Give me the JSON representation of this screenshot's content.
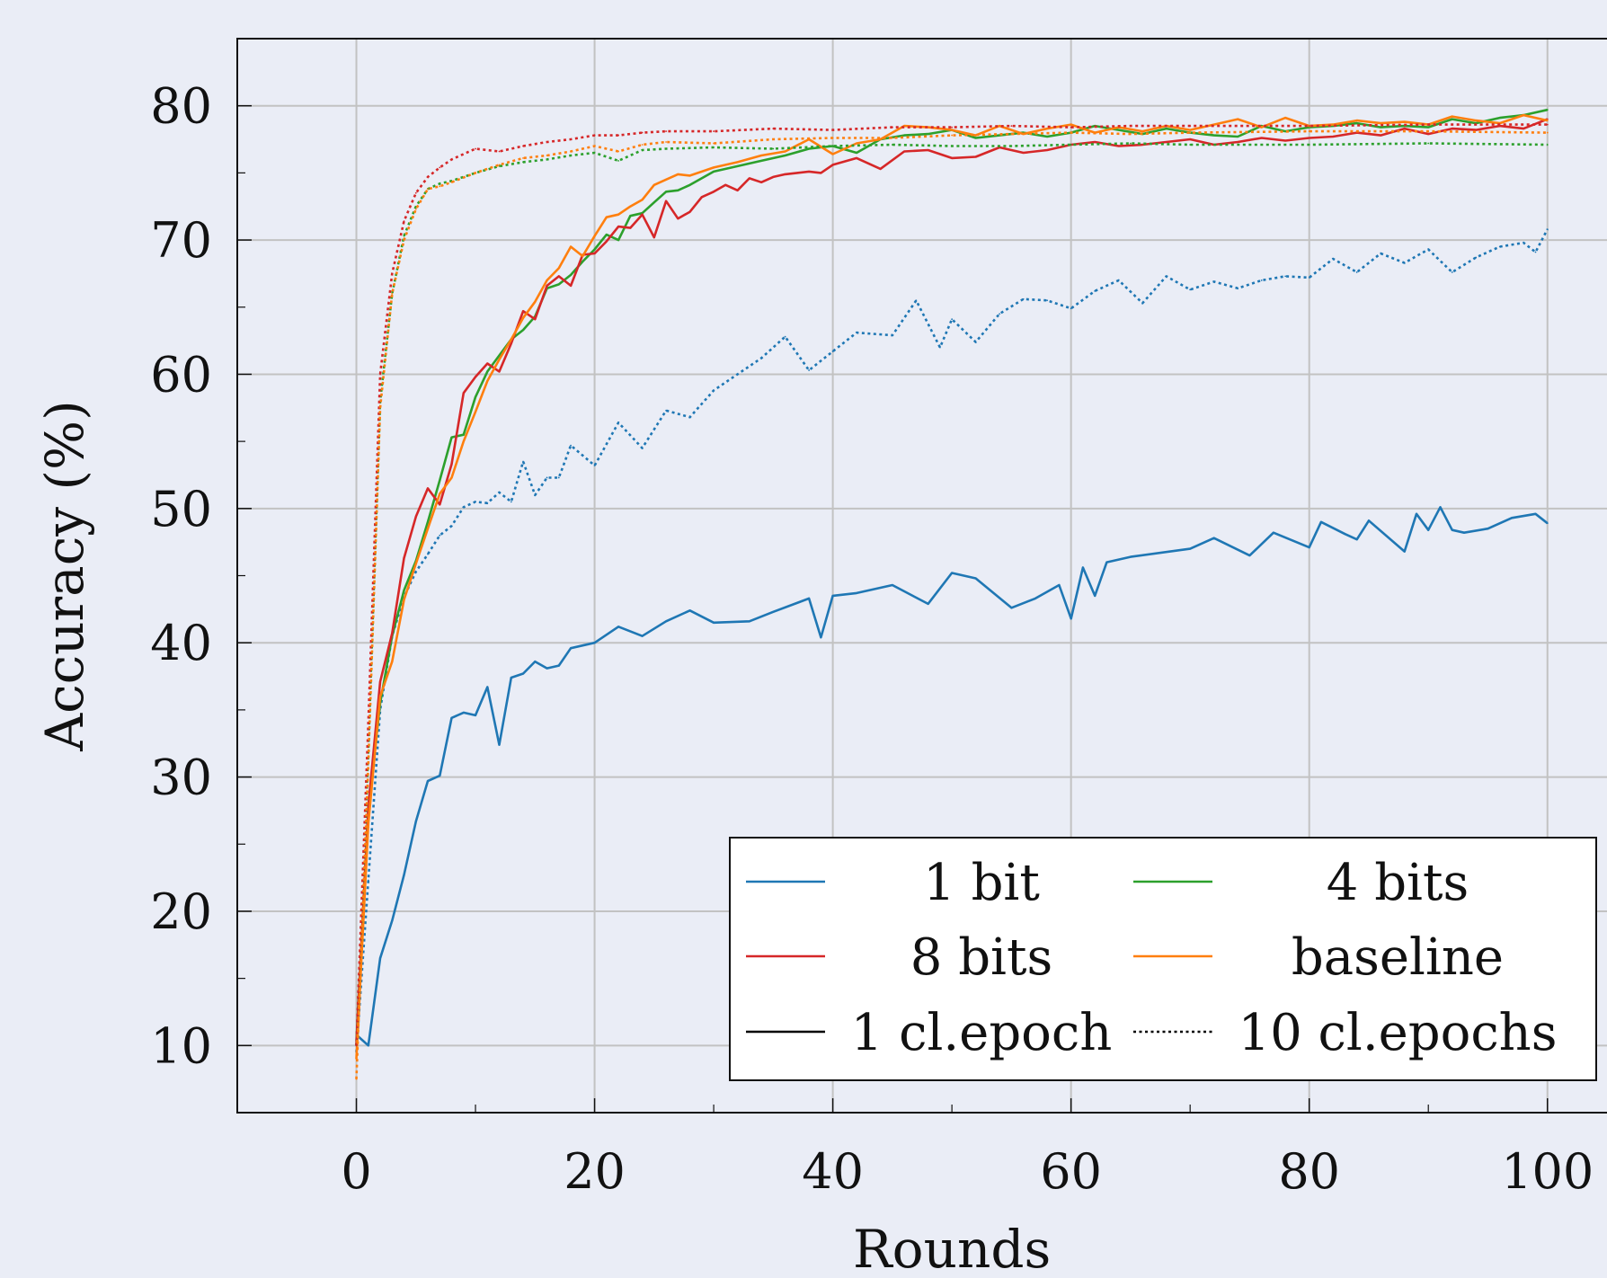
{
  "chart_data": {
    "type": "line",
    "xlabel": "Rounds",
    "ylabel": "Accuracy (%)",
    "xlim": [
      -10,
      105
    ],
    "ylim": [
      5,
      85
    ],
    "x_ticks": [
      0,
      20,
      40,
      60,
      80,
      100
    ],
    "y_ticks": [
      10,
      20,
      30,
      40,
      50,
      60,
      70,
      80
    ],
    "x_tick_labels": [
      "0",
      "20",
      "40",
      "60",
      "80",
      "100"
    ],
    "y_tick_labels": [
      "10",
      "20",
      "30",
      "40",
      "50",
      "60",
      "70",
      "80"
    ],
    "grid": true,
    "legend_position": "bottom-right",
    "legend": {
      "ncol": 2,
      "entries": [
        {
          "label": "1 bit",
          "color": "#1f77b4",
          "style": "solid"
        },
        {
          "label": "4 bits",
          "color": "#2ca02c",
          "style": "solid"
        },
        {
          "label": "8 bits",
          "color": "#d62728",
          "style": "solid"
        },
        {
          "label": "baseline",
          "color": "#ff7f0e",
          "style": "solid"
        },
        {
          "label": "1 cl.epoch",
          "color": "#000000",
          "style": "solid"
        },
        {
          "label": "10 cl.epochs",
          "color": "#000000",
          "style": "dotted"
        }
      ]
    },
    "series": [
      {
        "quant": "1 bit",
        "epochs": "1 cl.epoch",
        "color": "#1f77b4",
        "style": "solid",
        "x": [
          0,
          1,
          2,
          3,
          4,
          5,
          6,
          7,
          8,
          9,
          10,
          11,
          12,
          13,
          14,
          15,
          16,
          17,
          18,
          20,
          22,
          24,
          26,
          28,
          30,
          33,
          35,
          38,
          39,
          40,
          42,
          45,
          48,
          50,
          52,
          55,
          57,
          59,
          60,
          61,
          62,
          63,
          65,
          70,
          72,
          75,
          77,
          80,
          81,
          83,
          84,
          85,
          88,
          89,
          90,
          91,
          92,
          93,
          95,
          97,
          99,
          100
        ],
        "y": [
          10.8,
          10.0,
          16.5,
          19.3,
          22.7,
          26.7,
          29.7,
          30.1,
          34.4,
          34.8,
          34.6,
          36.7,
          32.4,
          37.4,
          37.7,
          38.6,
          38.1,
          38.3,
          39.6,
          40.0,
          41.2,
          40.5,
          41.6,
          42.4,
          41.5,
          41.6,
          42.3,
          43.3,
          40.4,
          43.5,
          43.7,
          44.3,
          42.9,
          45.2,
          44.8,
          42.6,
          43.3,
          44.3,
          41.8,
          45.6,
          43.5,
          46.0,
          46.4,
          47.0,
          47.8,
          46.5,
          48.2,
          47.1,
          49.0,
          48.1,
          47.7,
          49.1,
          46.8,
          49.6,
          48.4,
          50.1,
          48.4,
          48.2,
          48.5,
          49.3,
          49.6,
          48.9
        ]
      },
      {
        "quant": "1 bit",
        "epochs": "10 cl.epochs",
        "color": "#1f77b4",
        "style": "dotted",
        "x": [
          0,
          1,
          2,
          3,
          4,
          5,
          6,
          7,
          8,
          9,
          10,
          11,
          12,
          13,
          14,
          15,
          16,
          17,
          18,
          20,
          22,
          24,
          26,
          28,
          30,
          32,
          34,
          36,
          38,
          40,
          42,
          45,
          47,
          49,
          50,
          52,
          54,
          56,
          58,
          60,
          62,
          64,
          66,
          68,
          70,
          72,
          74,
          76,
          78,
          80,
          82,
          84,
          86,
          88,
          90,
          92,
          94,
          96,
          98,
          99,
          100
        ],
        "y": [
          9.5,
          22.3,
          35.0,
          40.5,
          43.4,
          45.3,
          46.6,
          48.0,
          48.7,
          50.1,
          50.5,
          50.4,
          51.2,
          50.5,
          53.5,
          51.0,
          52.3,
          52.3,
          54.7,
          53.2,
          56.4,
          54.5,
          57.3,
          56.8,
          58.8,
          60.0,
          61.2,
          62.8,
          60.3,
          61.7,
          63.1,
          62.9,
          65.5,
          62.0,
          64.1,
          62.4,
          64.5,
          65.6,
          65.5,
          64.9,
          66.2,
          67.0,
          65.3,
          67.3,
          66.3,
          66.9,
          66.4,
          67.0,
          67.3,
          67.2,
          68.6,
          67.6,
          69.0,
          68.3,
          69.3,
          67.6,
          68.7,
          69.5,
          69.8,
          69.1,
          70.8
        ]
      },
      {
        "quant": "4 bits",
        "epochs": "1 cl.epoch",
        "color": "#2ca02c",
        "style": "solid",
        "x": [
          0,
          1,
          2,
          3,
          4,
          5,
          6,
          7,
          8,
          9,
          10,
          11,
          12,
          13,
          14,
          15,
          16,
          17,
          18,
          19,
          20,
          21,
          22,
          23,
          24,
          25,
          26,
          27,
          28,
          30,
          32,
          34,
          36,
          38,
          40,
          42,
          44,
          46,
          48,
          50,
          52,
          54,
          56,
          58,
          60,
          62,
          64,
          66,
          68,
          70,
          72,
          74,
          76,
          78,
          80,
          82,
          84,
          86,
          88,
          90,
          92,
          94,
          96,
          98,
          100
        ],
        "y": [
          10.3,
          27.5,
          35.5,
          40.5,
          43.9,
          46.1,
          49.0,
          52.1,
          55.3,
          55.5,
          58.3,
          60.2,
          61.4,
          62.6,
          63.3,
          64.3,
          66.4,
          66.7,
          67.4,
          68.4,
          69.3,
          70.4,
          70.0,
          71.8,
          72.0,
          72.8,
          73.6,
          73.7,
          74.1,
          75.1,
          75.5,
          75.9,
          76.3,
          76.8,
          77.0,
          76.5,
          77.5,
          77.8,
          77.9,
          78.2,
          77.6,
          77.8,
          78.0,
          77.7,
          78.0,
          78.5,
          78.2,
          77.9,
          78.3,
          78.0,
          77.8,
          77.7,
          78.5,
          78.1,
          78.4,
          78.5,
          78.7,
          78.4,
          78.5,
          78.4,
          79.0,
          78.7,
          79.1,
          79.3,
          79.7
        ]
      },
      {
        "quant": "8 bits",
        "epochs": "1 cl.epoch",
        "color": "#d62728",
        "style": "solid",
        "x": [
          0,
          1,
          2,
          3,
          4,
          5,
          6,
          7,
          8,
          9,
          10,
          11,
          12,
          13,
          14,
          15,
          16,
          17,
          18,
          19,
          20,
          21,
          22,
          23,
          24,
          25,
          26,
          27,
          28,
          29,
          30,
          31,
          32,
          33,
          34,
          35,
          36,
          37,
          38,
          39,
          40,
          42,
          44,
          46,
          48,
          50,
          52,
          54,
          56,
          58,
          60,
          62,
          64,
          66,
          68,
          70,
          72,
          74,
          76,
          78,
          80,
          82,
          84,
          86,
          88,
          90,
          92,
          94,
          96,
          98,
          100
        ],
        "y": [
          10.0,
          27.8,
          37.1,
          40.7,
          46.3,
          49.4,
          51.5,
          50.3,
          53.3,
          58.6,
          59.8,
          60.8,
          60.2,
          62.3,
          64.7,
          64.1,
          66.6,
          67.3,
          66.6,
          68.9,
          69.0,
          69.9,
          71.0,
          70.9,
          71.9,
          70.2,
          72.9,
          71.6,
          72.1,
          73.2,
          73.6,
          74.1,
          73.7,
          74.6,
          74.3,
          74.7,
          74.9,
          75.0,
          75.1,
          75.0,
          75.6,
          76.1,
          75.3,
          76.6,
          76.7,
          76.1,
          76.2,
          76.9,
          76.5,
          76.7,
          77.1,
          77.3,
          77.0,
          77.1,
          77.3,
          77.5,
          77.1,
          77.3,
          77.6,
          77.4,
          77.6,
          77.7,
          78.0,
          77.8,
          78.3,
          77.9,
          78.3,
          78.2,
          78.5,
          78.3,
          79.0
        ]
      },
      {
        "quant": "baseline",
        "epochs": "1 cl.epoch",
        "color": "#ff7f0e",
        "style": "solid",
        "x": [
          0,
          1,
          2,
          3,
          4,
          5,
          6,
          7,
          8,
          9,
          10,
          11,
          12,
          13,
          14,
          15,
          16,
          17,
          18,
          19,
          20,
          21,
          22,
          23,
          24,
          25,
          26,
          27,
          28,
          30,
          32,
          34,
          36,
          38,
          40,
          42,
          44,
          46,
          48,
          50,
          52,
          54,
          56,
          58,
          60,
          62,
          64,
          66,
          68,
          70,
          72,
          74,
          76,
          78,
          80,
          82,
          84,
          86,
          88,
          90,
          92,
          94,
          96,
          98,
          100
        ],
        "y": [
          9.0,
          26.5,
          36.0,
          38.6,
          43.2,
          45.9,
          48.5,
          51.1,
          52.3,
          55.0,
          57.2,
          59.5,
          61.1,
          62.6,
          64.2,
          65.4,
          67.0,
          67.9,
          69.5,
          68.8,
          70.3,
          71.7,
          71.9,
          72.5,
          73.0,
          74.1,
          74.5,
          74.9,
          74.8,
          75.4,
          75.8,
          76.3,
          76.6,
          77.5,
          76.4,
          77.2,
          77.5,
          78.5,
          78.4,
          78.2,
          77.8,
          78.5,
          77.9,
          78.3,
          78.6,
          78.0,
          78.4,
          78.1,
          78.5,
          78.2,
          78.6,
          79.0,
          78.4,
          79.1,
          78.5,
          78.6,
          78.9,
          78.7,
          78.8,
          78.6,
          79.2,
          78.9,
          78.7,
          79.3,
          78.9
        ]
      },
      {
        "quant": "4 bits",
        "epochs": "10 cl.epochs",
        "color": "#2ca02c",
        "style": "dotted",
        "x": [
          0,
          1,
          2,
          3,
          4,
          5,
          6,
          7,
          8,
          10,
          12,
          14,
          16,
          18,
          20,
          22,
          24,
          26,
          30,
          35,
          40,
          45,
          50,
          55,
          60,
          65,
          70,
          80,
          90,
          100
        ],
        "y": [
          10.0,
          32.0,
          58.0,
          66.0,
          70.3,
          72.5,
          73.8,
          74.2,
          74.4,
          75.0,
          75.5,
          75.8,
          76.0,
          76.3,
          76.5,
          75.9,
          76.7,
          76.8,
          76.9,
          76.8,
          77.0,
          77.1,
          77.0,
          77.0,
          77.1,
          77.2,
          77.1,
          77.1,
          77.2,
          77.1
        ]
      },
      {
        "quant": "8 bits",
        "epochs": "10 cl.epochs",
        "color": "#d62728",
        "style": "dotted",
        "x": [
          0,
          1,
          2,
          3,
          4,
          5,
          6,
          7,
          8,
          10,
          12,
          14,
          16,
          18,
          20,
          22,
          24,
          26,
          30,
          35,
          40,
          45,
          50,
          55,
          60,
          65,
          70,
          80,
          90,
          100
        ],
        "y": [
          10.0,
          34.0,
          60.0,
          67.5,
          71.4,
          73.5,
          74.7,
          75.4,
          76.0,
          76.8,
          76.6,
          77.0,
          77.3,
          77.5,
          77.8,
          77.8,
          78.0,
          78.1,
          78.1,
          78.3,
          78.2,
          78.4,
          78.4,
          78.5,
          78.4,
          78.5,
          78.5,
          78.5,
          78.6,
          78.6
        ]
      },
      {
        "quant": "baseline",
        "epochs": "10 cl.epochs",
        "color": "#ff7f0e",
        "style": "dotted",
        "x": [
          0,
          1,
          2,
          3,
          4,
          5,
          6,
          7,
          8,
          10,
          12,
          14,
          16,
          18,
          20,
          22,
          24,
          26,
          30,
          35,
          40,
          45,
          50,
          55,
          60,
          65,
          70,
          80,
          90,
          100
        ],
        "y": [
          7.5,
          31.0,
          57.5,
          66.0,
          70.0,
          72.3,
          73.8,
          74.0,
          74.3,
          75.0,
          75.6,
          76.1,
          76.3,
          76.6,
          77.0,
          76.6,
          77.1,
          77.3,
          77.2,
          77.5,
          77.6,
          77.6,
          77.8,
          77.9,
          78.0,
          77.9,
          78.0,
          78.1,
          78.1,
          78.0
        ]
      }
    ]
  }
}
